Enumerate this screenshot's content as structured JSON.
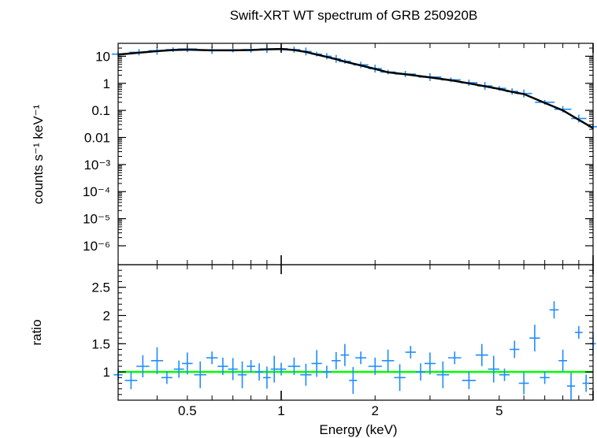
{
  "chart_data": [
    {
      "panel": "spectrum",
      "type": "scatter",
      "title": "Swift-XRT WT spectrum of GRB 250920B",
      "xlabel": "",
      "ylabel": "counts s⁻¹ keV⁻¹",
      "xscale": "log",
      "yscale": "log",
      "xlim": [
        0.3,
        10
      ],
      "ylim": [
        2e-07,
        30
      ],
      "x_ticks": [
        0.5,
        1,
        2,
        5
      ],
      "y_ticks": [
        {
          "value": 10,
          "label": "10"
        },
        {
          "value": 1,
          "label": "1"
        },
        {
          "value": 0.1,
          "label": "0.1"
        },
        {
          "value": 0.01,
          "label": "0.01"
        },
        {
          "value": 0.001,
          "label": "10⁻³"
        },
        {
          "value": 0.0001,
          "label": "10⁻⁴"
        },
        {
          "value": 1e-05,
          "label": "10⁻⁵"
        },
        {
          "value": 1e-06,
          "label": "10⁻⁶"
        }
      ],
      "series": [
        {
          "role": "data",
          "color": "#1e8cff",
          "x": [
            0.3,
            0.35,
            0.4,
            0.45,
            0.5,
            0.6,
            0.7,
            0.8,
            0.9,
            1.0,
            1.1,
            1.2,
            1.3,
            1.4,
            1.5,
            1.6,
            1.8,
            2.0,
            2.2,
            2.5,
            3.0,
            3.5,
            4.0,
            4.5,
            5.0,
            5.5,
            6.0,
            7.0,
            8.0,
            9.0,
            10.0
          ],
          "y": [
            12.0,
            14.0,
            16.0,
            17.5,
            18.5,
            17.0,
            17.0,
            17.5,
            18.5,
            19.0,
            17.5,
            15.0,
            12.0,
            10.0,
            8.0,
            6.5,
            4.8,
            3.5,
            2.6,
            2.2,
            1.7,
            1.35,
            1.05,
            0.8,
            0.65,
            0.5,
            0.42,
            0.2,
            0.11,
            0.05,
            0.025
          ]
        },
        {
          "role": "model",
          "color": "#000000",
          "x": [
            0.3,
            0.35,
            0.4,
            0.45,
            0.5,
            0.6,
            0.7,
            0.8,
            0.9,
            1.0,
            1.1,
            1.2,
            1.3,
            1.4,
            1.5,
            1.6,
            1.8,
            2.0,
            2.2,
            2.5,
            3.0,
            3.5,
            4.0,
            4.5,
            5.0,
            5.5,
            6.0,
            7.0,
            8.0,
            9.0,
            10.0
          ],
          "y": [
            11.5,
            13.5,
            15.5,
            17.0,
            17.5,
            16.5,
            16.5,
            17.0,
            18.0,
            18.5,
            17.0,
            14.5,
            11.5,
            9.5,
            7.8,
            6.3,
            4.6,
            3.4,
            2.55,
            2.15,
            1.65,
            1.3,
            1.0,
            0.78,
            0.62,
            0.48,
            0.4,
            0.19,
            0.1,
            0.045,
            0.022
          ]
        }
      ]
    },
    {
      "panel": "ratio",
      "type": "scatter",
      "xlabel": "Energy (keV)",
      "ylabel": "ratio",
      "xscale": "log",
      "xlim": [
        0.3,
        10
      ],
      "ylim": [
        0.5,
        2.9
      ],
      "x_ticks": [
        0.5,
        1,
        2,
        5
      ],
      "y_ticks": [
        {
          "value": 1,
          "label": "1"
        },
        {
          "value": 1.5,
          "label": "1.5"
        },
        {
          "value": 2,
          "label": "2"
        },
        {
          "value": 2.5,
          "label": "2.5"
        }
      ],
      "reference_line": {
        "value": 1,
        "color": "#00ff00"
      },
      "series": [
        {
          "role": "data",
          "color": "#1e8cff",
          "x": [
            0.3,
            0.33,
            0.36,
            0.4,
            0.43,
            0.47,
            0.5,
            0.55,
            0.6,
            0.65,
            0.7,
            0.75,
            0.8,
            0.85,
            0.9,
            0.95,
            1.0,
            1.1,
            1.2,
            1.3,
            1.4,
            1.5,
            1.6,
            1.7,
            1.8,
            2.0,
            2.2,
            2.4,
            2.6,
            2.8,
            3.0,
            3.3,
            3.6,
            4.0,
            4.4,
            4.8,
            5.2,
            5.6,
            6.0,
            6.5,
            7.0,
            7.5,
            8.0,
            8.5,
            9.0,
            9.5,
            10.0
          ],
          "y": [
            0.95,
            0.85,
            1.1,
            1.2,
            0.9,
            1.05,
            1.15,
            0.95,
            1.25,
            1.1,
            1.05,
            0.95,
            1.1,
            1.0,
            0.9,
            1.05,
            1.05,
            1.1,
            0.95,
            1.15,
            1.0,
            1.2,
            1.3,
            0.85,
            1.25,
            1.1,
            1.2,
            0.9,
            1.35,
            1.0,
            1.15,
            0.95,
            1.25,
            0.85,
            1.3,
            1.05,
            0.95,
            1.4,
            0.8,
            1.6,
            0.9,
            2.1,
            1.2,
            0.75,
            1.7,
            0.8,
            1.5
          ]
        }
      ]
    }
  ]
}
